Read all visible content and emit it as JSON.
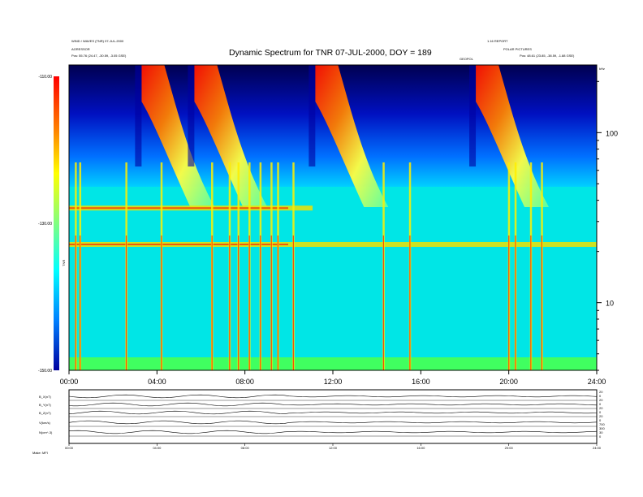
{
  "header": {
    "left_line1": "WIND / WAVES (TNR) 07-JUL-2000",
    "left_line2": "AGRESSOR",
    "left_line3": "Pos: 55.76 (24.47, -30.59, -3.05 GSE)",
    "right_line1": "1.16 REPORT",
    "right_line2": "POLAR PICTURES",
    "right_line3": "Pos: 48.61 (23.85, -38.59, -1.88 GSE)",
    "marker_label": "GEOPOL",
    "top_right_unit": "kHz"
  },
  "chart_data": {
    "type": "heatmap",
    "title": "Dynamic Spectrum for TNR 07-JUL-2000, DOY = 189",
    "xlabel": "",
    "colorbar": {
      "ticks": [
        "-110.00",
        "-130.00",
        "-150.00"
      ],
      "label": "TNR",
      "range": [
        -150,
        -110
      ]
    },
    "x_ticks": [
      "00:00",
      "04:00",
      "08:00",
      "12:00",
      "16:00",
      "20:00",
      "24:00"
    ],
    "x_range_hours": [
      0,
      24
    ],
    "y_right_ticks": [
      "100",
      "10"
    ],
    "y_scale": "log",
    "y_range_khz": [
      4,
      250
    ],
    "band_lines_khz": [
      36,
      22
    ],
    "type_iii_burst_start_hours": [
      3.3,
      5.7,
      11.2,
      18.5
    ],
    "spikes_hours": [
      0.3,
      0.5,
      2.6,
      4.2,
      6.5,
      7.3,
      7.7,
      8.2,
      8.7,
      9.2,
      9.5,
      10.2,
      14.3,
      15.5,
      20.0,
      20.3,
      21.0,
      21.5
    ]
  },
  "bottom": {
    "panel_labels": [
      "B_X(nT)",
      "B_Y(nT)",
      "B_Z(nT)",
      "V(km/s)",
      "N(cm^-3)"
    ],
    "panel_right_values": [
      "20",
      "0",
      "20",
      "0",
      "20",
      "0",
      "20",
      "0",
      "700",
      "300",
      "30",
      "0"
    ],
    "x_ticks": [
      "00:00",
      "04:00",
      "08:00",
      "12:00",
      "16:00",
      "20:00",
      "24:00"
    ],
    "footer_left": "Make: MFI"
  },
  "colors": {
    "background": "#00e6e6",
    "band": "#f0e000",
    "burst": "#ff2000",
    "high_freq": "#0000a0"
  }
}
